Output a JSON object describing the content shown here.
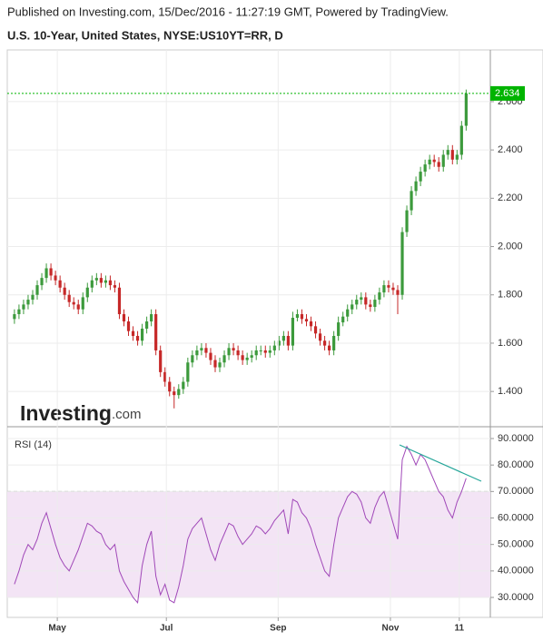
{
  "header": {
    "published": "Published on Investing.com, 15/Dec/2016 - 11:27:19 GMT, Powered by TradingView."
  },
  "watermark": {
    "brand": "Investing",
    "suffix": ".com"
  },
  "chart_data": [
    {
      "type": "candlestick",
      "title": "U.S. 10-Year, United States, NYSE:US10YT=RR, D",
      "up_color": "#3c9a3c",
      "down_color": "#c62828",
      "xlim": [
        -1.57,
        104.3
      ],
      "ylim": [
        1.254,
        2.814
      ],
      "yticks": [
        {
          "value": 1.4,
          "label": "1.400"
        },
        {
          "value": 1.6,
          "label": "1.600"
        },
        {
          "value": 1.8,
          "label": "1.800"
        },
        {
          "value": 2.0,
          "label": "2.000"
        },
        {
          "value": 2.2,
          "label": "2.200"
        },
        {
          "value": 2.4,
          "label": "2.400"
        },
        {
          "value": 2.6,
          "label": "2.600"
        }
      ],
      "grid": true,
      "last_price": 2.634,
      "last_price_color": "#00b400",
      "ohlc": [
        [
          1.7,
          1.74,
          1.68,
          1.72
        ],
        [
          1.72,
          1.76,
          1.7,
          1.74
        ],
        [
          1.74,
          1.78,
          1.72,
          1.76
        ],
        [
          1.76,
          1.8,
          1.74,
          1.78
        ],
        [
          1.78,
          1.82,
          1.76,
          1.8
        ],
        [
          1.8,
          1.86,
          1.78,
          1.84
        ],
        [
          1.84,
          1.89,
          1.82,
          1.87
        ],
        [
          1.87,
          1.93,
          1.85,
          1.91
        ],
        [
          1.91,
          1.93,
          1.86,
          1.88
        ],
        [
          1.88,
          1.9,
          1.84,
          1.86
        ],
        [
          1.86,
          1.88,
          1.81,
          1.83
        ],
        [
          1.83,
          1.85,
          1.78,
          1.8
        ],
        [
          1.8,
          1.82,
          1.75,
          1.77
        ],
        [
          1.77,
          1.79,
          1.74,
          1.76
        ],
        [
          1.76,
          1.78,
          1.72,
          1.74
        ],
        [
          1.74,
          1.81,
          1.72,
          1.79
        ],
        [
          1.79,
          1.85,
          1.77,
          1.83
        ],
        [
          1.83,
          1.88,
          1.81,
          1.86
        ],
        [
          1.86,
          1.89,
          1.84,
          1.87
        ],
        [
          1.87,
          1.89,
          1.83,
          1.85
        ],
        [
          1.85,
          1.88,
          1.83,
          1.86
        ],
        [
          1.86,
          1.88,
          1.82,
          1.84
        ],
        [
          1.84,
          1.86,
          1.81,
          1.83
        ],
        [
          1.83,
          1.85,
          1.7,
          1.72
        ],
        [
          1.72,
          1.74,
          1.67,
          1.69
        ],
        [
          1.69,
          1.71,
          1.63,
          1.65
        ],
        [
          1.65,
          1.67,
          1.61,
          1.63
        ],
        [
          1.63,
          1.65,
          1.59,
          1.61
        ],
        [
          1.61,
          1.68,
          1.59,
          1.66
        ],
        [
          1.66,
          1.71,
          1.64,
          1.69
        ],
        [
          1.69,
          1.74,
          1.67,
          1.72
        ],
        [
          1.72,
          1.74,
          1.55,
          1.57
        ],
        [
          1.57,
          1.59,
          1.46,
          1.48
        ],
        [
          1.48,
          1.5,
          1.42,
          1.44
        ],
        [
          1.44,
          1.46,
          1.38,
          1.4
        ],
        [
          1.4,
          1.42,
          1.33,
          1.385
        ],
        [
          1.385,
          1.43,
          1.37,
          1.41
        ],
        [
          1.41,
          1.46,
          1.39,
          1.44
        ],
        [
          1.44,
          1.54,
          1.42,
          1.52
        ],
        [
          1.52,
          1.57,
          1.5,
          1.55
        ],
        [
          1.55,
          1.59,
          1.53,
          1.57
        ],
        [
          1.57,
          1.6,
          1.55,
          1.58
        ],
        [
          1.58,
          1.6,
          1.54,
          1.56
        ],
        [
          1.56,
          1.58,
          1.51,
          1.53
        ],
        [
          1.53,
          1.55,
          1.48,
          1.5
        ],
        [
          1.5,
          1.54,
          1.48,
          1.52
        ],
        [
          1.52,
          1.57,
          1.5,
          1.55
        ],
        [
          1.55,
          1.6,
          1.53,
          1.58
        ],
        [
          1.58,
          1.6,
          1.55,
          1.57
        ],
        [
          1.57,
          1.59,
          1.53,
          1.55
        ],
        [
          1.55,
          1.57,
          1.51,
          1.53
        ],
        [
          1.53,
          1.56,
          1.51,
          1.54
        ],
        [
          1.54,
          1.57,
          1.52,
          1.55
        ],
        [
          1.55,
          1.59,
          1.53,
          1.57
        ],
        [
          1.57,
          1.59,
          1.55,
          1.57
        ],
        [
          1.57,
          1.59,
          1.54,
          1.56
        ],
        [
          1.56,
          1.59,
          1.54,
          1.57
        ],
        [
          1.57,
          1.61,
          1.55,
          1.59
        ],
        [
          1.59,
          1.63,
          1.57,
          1.61
        ],
        [
          1.61,
          1.65,
          1.59,
          1.63
        ],
        [
          1.63,
          1.65,
          1.57,
          1.59
        ],
        [
          1.59,
          1.73,
          1.57,
          1.705
        ],
        [
          1.705,
          1.74,
          1.69,
          1.72
        ],
        [
          1.72,
          1.74,
          1.68,
          1.7
        ],
        [
          1.7,
          1.72,
          1.67,
          1.69
        ],
        [
          1.69,
          1.71,
          1.65,
          1.67
        ],
        [
          1.67,
          1.69,
          1.62,
          1.64
        ],
        [
          1.64,
          1.66,
          1.59,
          1.61
        ],
        [
          1.61,
          1.63,
          1.57,
          1.59
        ],
        [
          1.59,
          1.61,
          1.55,
          1.57
        ],
        [
          1.57,
          1.65,
          1.55,
          1.63
        ],
        [
          1.63,
          1.71,
          1.61,
          1.686
        ],
        [
          1.686,
          1.73,
          1.67,
          1.71
        ],
        [
          1.71,
          1.76,
          1.69,
          1.74
        ],
        [
          1.74,
          1.78,
          1.72,
          1.76
        ],
        [
          1.76,
          1.8,
          1.74,
          1.78
        ],
        [
          1.78,
          1.81,
          1.76,
          1.79
        ],
        [
          1.79,
          1.81,
          1.74,
          1.76
        ],
        [
          1.76,
          1.78,
          1.73,
          1.75
        ],
        [
          1.75,
          1.8,
          1.73,
          1.78
        ],
        [
          1.78,
          1.83,
          1.76,
          1.81
        ],
        [
          1.81,
          1.86,
          1.79,
          1.84
        ],
        [
          1.84,
          1.86,
          1.81,
          1.83
        ],
        [
          1.83,
          1.85,
          1.8,
          1.82
        ],
        [
          1.82,
          1.84,
          1.72,
          1.8
        ],
        [
          1.8,
          2.08,
          1.78,
          2.06
        ],
        [
          2.06,
          2.17,
          2.04,
          2.15
        ],
        [
          2.15,
          2.25,
          2.13,
          2.23
        ],
        [
          2.23,
          2.29,
          2.21,
          2.27
        ],
        [
          2.27,
          2.33,
          2.25,
          2.31
        ],
        [
          2.31,
          2.36,
          2.29,
          2.34
        ],
        [
          2.34,
          2.38,
          2.32,
          2.36
        ],
        [
          2.36,
          2.38,
          2.33,
          2.35
        ],
        [
          2.35,
          2.37,
          2.31,
          2.33
        ],
        [
          2.33,
          2.4,
          2.31,
          2.38
        ],
        [
          2.38,
          2.42,
          2.36,
          2.4
        ],
        [
          2.4,
          2.42,
          2.34,
          2.36
        ],
        [
          2.36,
          2.4,
          2.34,
          2.38
        ],
        [
          2.38,
          2.52,
          2.36,
          2.5
        ],
        [
          2.5,
          2.65,
          2.48,
          2.634
        ]
      ]
    },
    {
      "type": "line",
      "title": "RSI (14)",
      "color": "#a048b8",
      "band_color": "#f3e4f5",
      "xlim": [
        -1.57,
        104.3
      ],
      "ylim": [
        22.46,
        94.46
      ],
      "yticks": [
        {
          "value": 30,
          "label": "30.0000"
        },
        {
          "value": 40,
          "label": "40.0000"
        },
        {
          "value": 50,
          "label": "50.0000"
        },
        {
          "value": 60,
          "label": "60.0000"
        },
        {
          "value": 70,
          "label": "70.0000"
        },
        {
          "value": 80,
          "label": "80.0000"
        },
        {
          "value": 90,
          "label": "90.0000"
        }
      ],
      "band": [
        30,
        70
      ],
      "grid": true,
      "xticks": [
        {
          "value": 9.4,
          "label": "May"
        },
        {
          "value": 33.3,
          "label": "Jul"
        },
        {
          "value": 57.8,
          "label": "Sep"
        },
        {
          "value": 82.4,
          "label": "Nov"
        },
        {
          "value": 97.5,
          "label": "11"
        }
      ],
      "values": [
        35,
        40,
        46,
        50,
        48,
        52,
        58,
        62,
        56,
        50,
        45,
        42,
        40,
        44,
        48,
        53,
        58,
        57,
        55,
        54,
        50,
        48,
        50,
        40,
        36,
        33,
        30,
        28,
        42,
        50,
        55,
        38,
        31,
        35,
        29,
        28,
        34,
        42,
        52,
        56,
        58,
        60,
        54,
        48,
        44,
        50,
        54,
        58,
        57,
        53,
        50,
        52,
        54,
        57,
        56,
        54,
        56,
        59,
        61,
        63,
        54,
        67,
        66,
        62,
        60,
        56,
        50,
        45,
        40,
        38,
        50,
        60,
        64,
        68,
        70,
        69,
        66,
        60,
        58,
        64,
        68,
        70,
        64,
        58,
        52,
        82,
        87,
        84,
        80,
        84,
        82,
        78,
        74,
        70,
        68,
        63,
        60,
        66,
        70,
        75
      ]
    }
  ]
}
